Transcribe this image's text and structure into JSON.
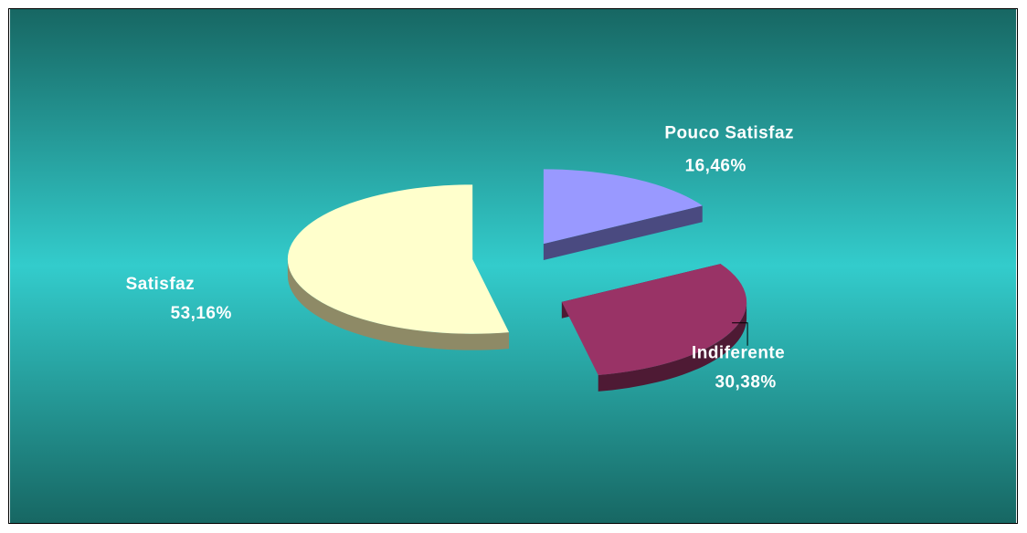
{
  "chart_data": {
    "type": "pie",
    "style": "3d-exploded",
    "slices": [
      {
        "label": "Satisfaz",
        "value": 53.16,
        "value_label": "53,16%",
        "color": "#FFFFCC",
        "side_color": "#8E8A66"
      },
      {
        "label": "Pouco Satisfaz",
        "value": 16.46,
        "value_label": "16,46%",
        "color": "#9999FF",
        "side_color": "#4A4A80"
      },
      {
        "label": "Indiferente",
        "value": 30.38,
        "value_label": "30,38%",
        "color": "#993366",
        "side_color": "#4E1A34"
      }
    ],
    "background": {
      "edge": "#176763",
      "center": "#33CCCC"
    },
    "legend": "none"
  }
}
